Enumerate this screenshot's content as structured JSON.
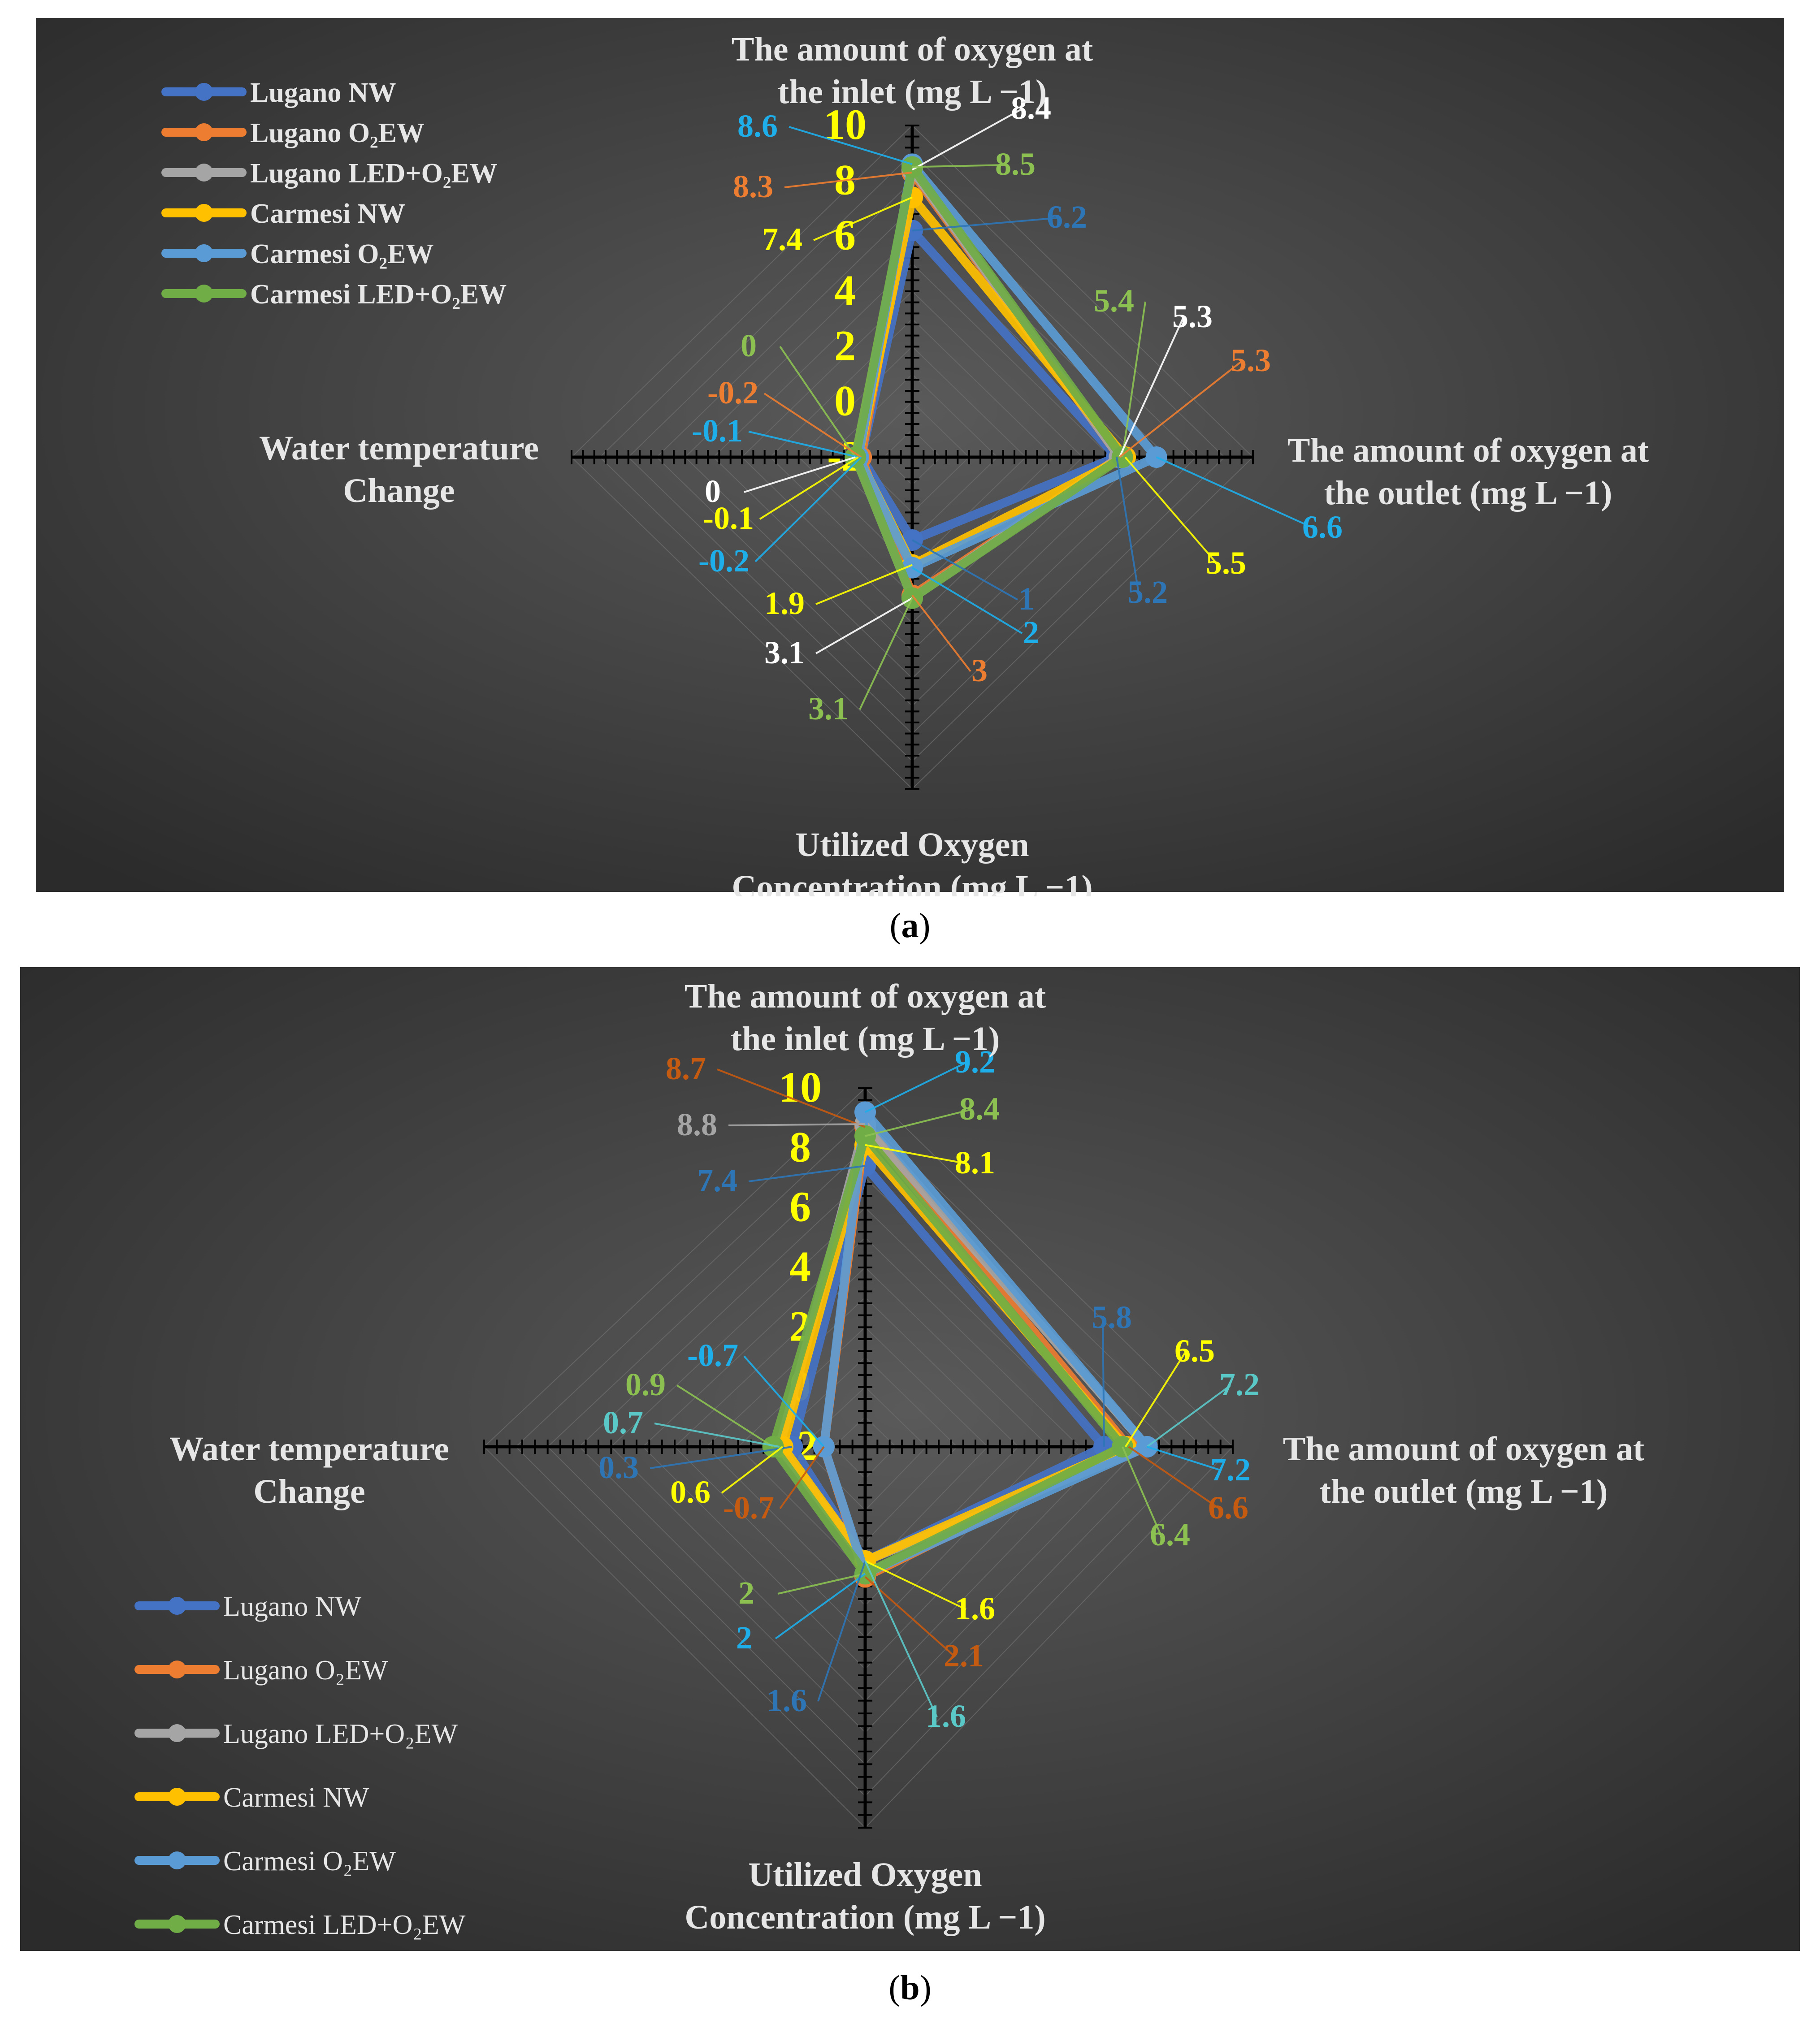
{
  "colors": {
    "Lugano NW": "#4472C4",
    "Lugano O₂EW": "#ED7D31",
    "Lugano LED+O₂EW": "#A5A5A5",
    "Carmesi NW": "#FFC000",
    "Carmesi O₂EW": "#5B9BD5",
    "Carmesi LED+O₂EW": "#70AD47",
    "tick_label": "#FFFF00",
    "background_dark": "#2b2b2b",
    "background_light": "#5a5a5a"
  },
  "captions": {
    "a": "a",
    "b": "b"
  },
  "chart_data": [
    {
      "id": "a",
      "type": "radar",
      "axes": [
        "The amount of oxygen at the inlet (mg L −1)",
        "The amount of oxygen  at the outlet (mg L −1)",
        "Utilized Oxygen Concentration (mg L −1)",
        "Water temperature Change"
      ],
      "axis_label_lines": [
        [
          "The amount of oxygen at",
          "the inlet (mg L −1)"
        ],
        [
          "The amount of oxygen  at",
          "the outlet (mg L −1)"
        ],
        [
          "Utilized Oxygen",
          "Concentration (mg L −1)"
        ],
        [
          "Water temperature",
          "Change"
        ]
      ],
      "scale_ticks": [
        "10",
        "8",
        "6",
        "4",
        "2",
        "0",
        "-2"
      ],
      "range": [
        -2,
        10
      ],
      "legend_position": "top-left",
      "series": [
        {
          "name": "Lugano NW",
          "values": [
            6.2,
            5.2,
            1,
            -0.2
          ]
        },
        {
          "name": "Lugano O₂EW",
          "values": [
            8.3,
            5.3,
            3,
            -0.2
          ]
        },
        {
          "name": "Lugano LED+O₂EW",
          "values": [
            8.4,
            5.3,
            3.1,
            0
          ]
        },
        {
          "name": "Carmesi NW",
          "values": [
            7.4,
            5.5,
            1.9,
            -0.1
          ]
        },
        {
          "name": "Carmesi O₂EW",
          "values": [
            8.6,
            6.6,
            2,
            -0.1
          ]
        },
        {
          "name": "Carmesi LED+O₂EW",
          "values": [
            8.5,
            5.4,
            3.1,
            0
          ]
        }
      ],
      "value_labels": [
        {
          "text": "8.6",
          "color": "#1EAEEA"
        },
        {
          "text": "8.4",
          "color": "#FFFFFF"
        },
        {
          "text": "8.3",
          "color": "#ED7D31"
        },
        {
          "text": "8.5",
          "color": "#8CC152"
        },
        {
          "text": "7.4",
          "color": "#FFFF00"
        },
        {
          "text": "6.2",
          "color": "#2E75B6"
        },
        {
          "text": "5.4",
          "color": "#8CC152"
        },
        {
          "text": "5.3",
          "color": "#FFFFFF"
        },
        {
          "text": "5.3",
          "color": "#ED7D31"
        },
        {
          "text": "6.6",
          "color": "#1EAEEA"
        },
        {
          "text": "5.5",
          "color": "#FFFF00"
        },
        {
          "text": "5.2",
          "color": "#2E75B6"
        },
        {
          "text": "0",
          "color": "#8CC152"
        },
        {
          "text": "-0.2",
          "color": "#ED7D31"
        },
        {
          "text": "-0.1",
          "color": "#1EAEEA"
        },
        {
          "text": "0",
          "color": "#FFFFFF"
        },
        {
          "text": "-0.1",
          "color": "#FFFF00"
        },
        {
          "text": "-0.2",
          "color": "#1EAEEA"
        },
        {
          "text": "1.9",
          "color": "#FFFF00"
        },
        {
          "text": "1",
          "color": "#2E75B6"
        },
        {
          "text": "2",
          "color": "#1EAEEA"
        },
        {
          "text": "3.1",
          "color": "#FFFFFF"
        },
        {
          "text": "3",
          "color": "#ED7D31"
        },
        {
          "text": "3.1",
          "color": "#8CC152"
        }
      ]
    },
    {
      "id": "b",
      "type": "radar",
      "axes": [
        "The amount of oxygen at the inlet (mg L −1)",
        "The amount of oxygen  at the outlet (mg L −1)",
        "Utilized Oxygen Concentration (mg L −1)",
        "Water temperature Change"
      ],
      "axis_label_lines": [
        [
          "The amount of oxygen at",
          "the inlet (mg L −1)"
        ],
        [
          "The amount of oxygen  at",
          "the outlet (mg L −1)"
        ],
        [
          "Utilized Oxygen",
          "Concentration (mg L −1)"
        ],
        [
          "Water temperature",
          "Change"
        ]
      ],
      "scale_ticks": [
        "10",
        "8",
        "6",
        "4",
        "2",
        "0",
        "-2"
      ],
      "range": [
        -2,
        10
      ],
      "legend_position": "bottom-left",
      "series": [
        {
          "name": "Lugano NW",
          "values": [
            7.4,
            5.8,
            1.6,
            0.3
          ]
        },
        {
          "name": "Lugano O₂EW",
          "values": [
            8.7,
            6.6,
            2.1,
            -0.7
          ]
        },
        {
          "name": "Lugano LED+O₂EW",
          "values": [
            8.8,
            7.2,
            1.6,
            0.7
          ]
        },
        {
          "name": "Carmesi NW",
          "values": [
            8.1,
            6.5,
            1.6,
            0.6
          ]
        },
        {
          "name": "Carmesi O₂EW",
          "values": [
            9.2,
            7.2,
            2,
            -0.7
          ]
        },
        {
          "name": "Carmesi LED+O₂EW",
          "values": [
            8.4,
            6.4,
            2,
            0.9
          ]
        }
      ],
      "value_labels": [
        {
          "text": "8.7",
          "color": "#C55A11"
        },
        {
          "text": "9.2",
          "color": "#1EAEEA"
        },
        {
          "text": "8.8",
          "color": "#A5A5A5"
        },
        {
          "text": "8.4",
          "color": "#8CC152"
        },
        {
          "text": "7.4",
          "color": "#2E75B6"
        },
        {
          "text": "8.1",
          "color": "#FFFF00"
        },
        {
          "text": "5.8",
          "color": "#2E75B6"
        },
        {
          "text": "6.5",
          "color": "#FFFF00"
        },
        {
          "text": "7.2",
          "color": "#5BC8C8"
        },
        {
          "text": "7.2",
          "color": "#1EAEEA"
        },
        {
          "text": "6.6",
          "color": "#C55A11"
        },
        {
          "text": "6.4",
          "color": "#8CC152"
        },
        {
          "text": "-0.7",
          "color": "#1EAEEA"
        },
        {
          "text": "0.9",
          "color": "#8CC152"
        },
        {
          "text": "0.7",
          "color": "#5BC8C8"
        },
        {
          "text": "0.3",
          "color": "#2E75B6"
        },
        {
          "text": "0.6",
          "color": "#FFFF00"
        },
        {
          "text": "-0.7",
          "color": "#C55A11"
        },
        {
          "text": "2",
          "color": "#8CC152"
        },
        {
          "text": "1.6",
          "color": "#FFFF00"
        },
        {
          "text": "2",
          "color": "#1EAEEA"
        },
        {
          "text": "2.1",
          "color": "#C55A11"
        },
        {
          "text": "1.6",
          "color": "#2E75B6"
        },
        {
          "text": "1.6",
          "color": "#5BC8C8"
        }
      ]
    }
  ]
}
